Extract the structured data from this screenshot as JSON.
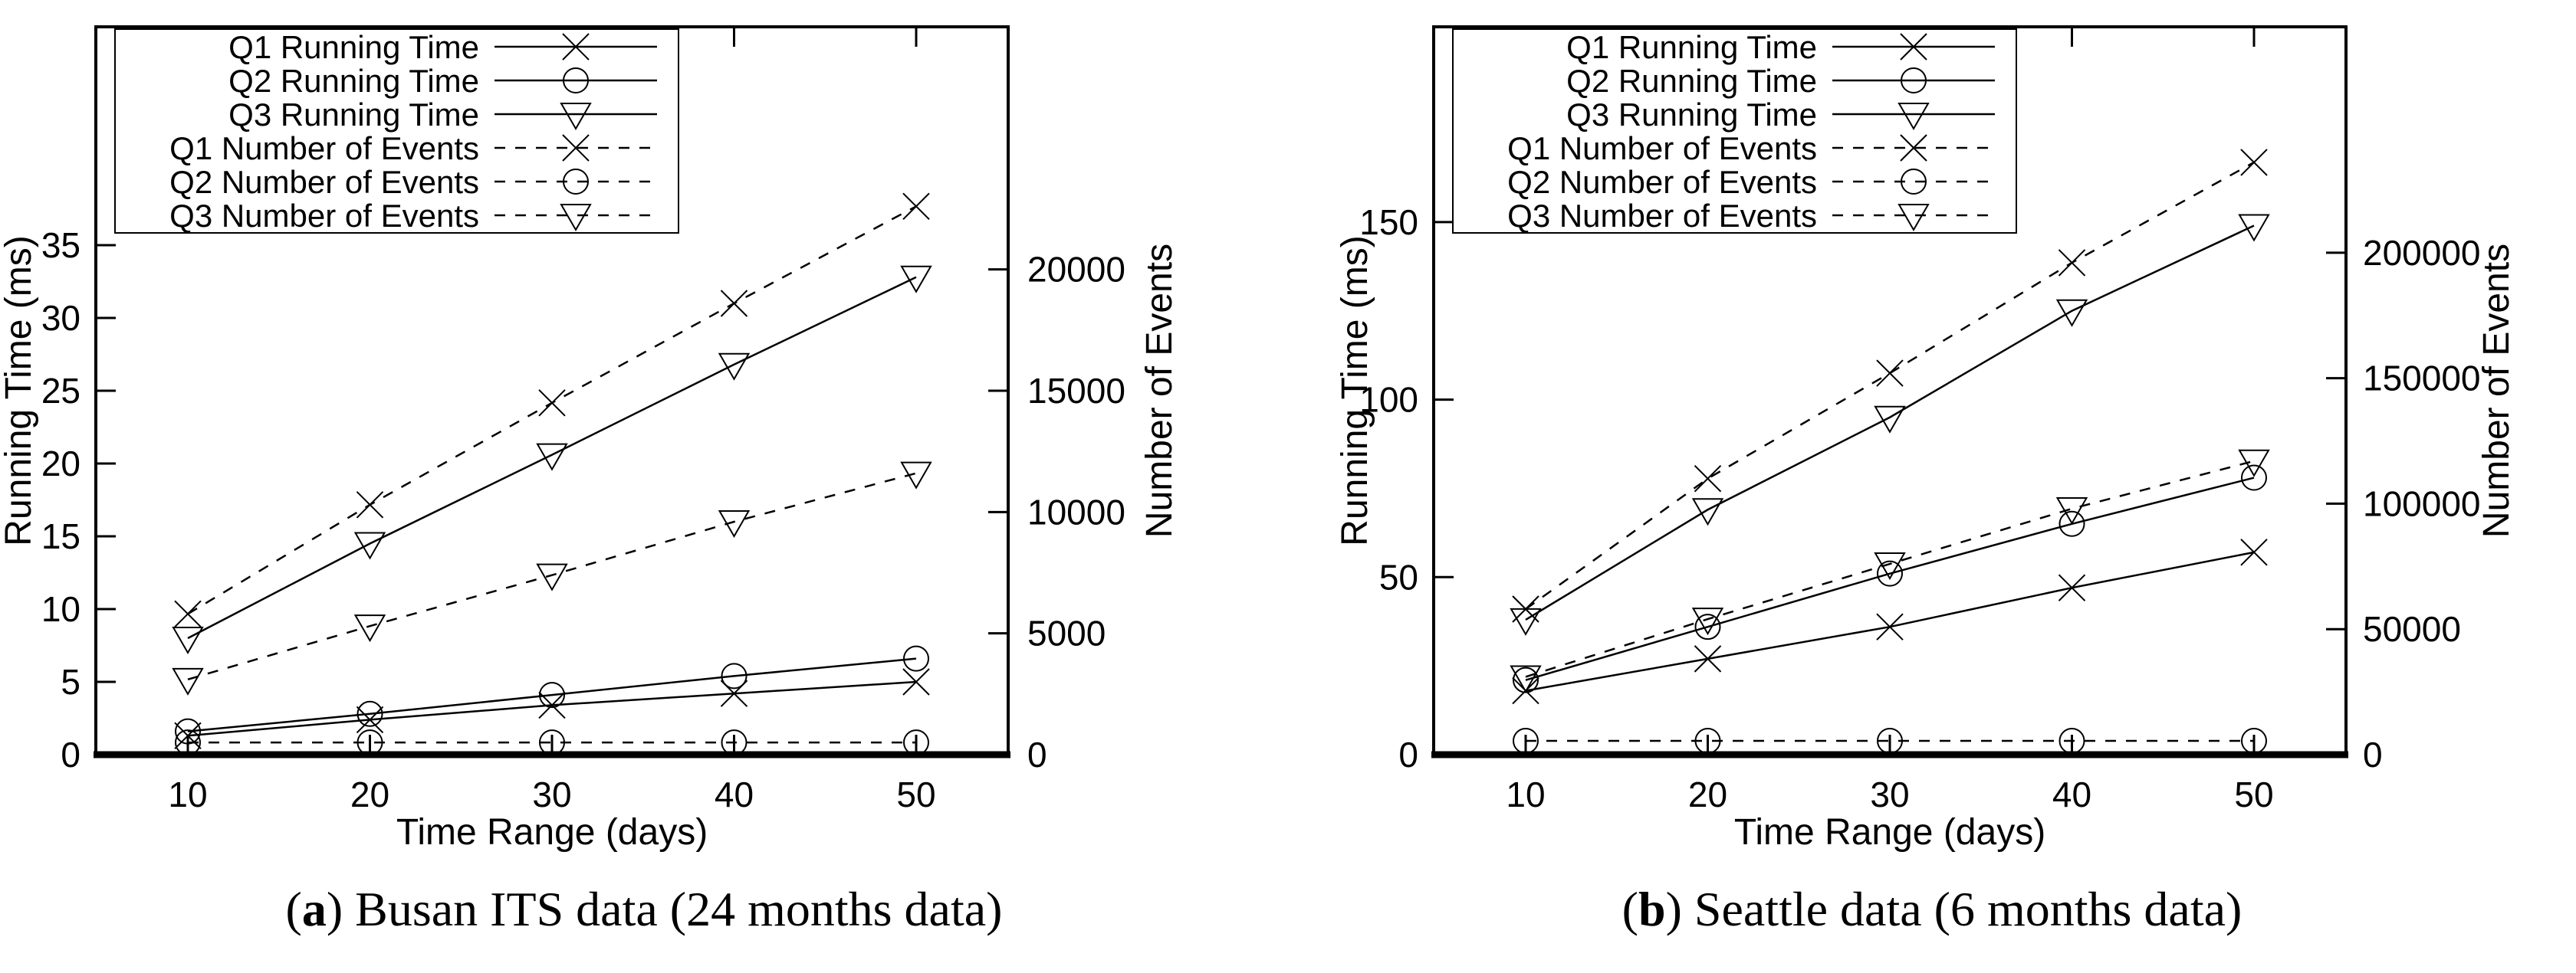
{
  "figure": {
    "background": "#ffffff",
    "ink_color": "#000000"
  },
  "chart_data": [
    {
      "id": "a",
      "type": "line",
      "caption": {
        "open": "(",
        "letter": "a",
        "close": ")",
        "text": " Busan ITS data (24 months data)"
      },
      "xlabel": "Time Range (days)",
      "ylabel_left": "Running Time (ms)",
      "ylabel_right": "Number of Events",
      "legend_position": "top-left",
      "grid": false,
      "x": [
        10,
        20,
        30,
        40,
        50
      ],
      "x_ticks": [
        10,
        20,
        30,
        40,
        50
      ],
      "y1_ticks": [
        0,
        5,
        10,
        15,
        20,
        25,
        30,
        35
      ],
      "y1_range": [
        0,
        50
      ],
      "y2_ticks": [
        0,
        5000,
        10000,
        15000,
        20000
      ],
      "y2_range": [
        0,
        30000
      ],
      "series": [
        {
          "name": "Q1 Running Time",
          "axis": "y1",
          "marker": "cross",
          "line": "solid",
          "values": [
            1.3,
            2.4,
            3.4,
            4.2,
            5.0
          ]
        },
        {
          "name": "Q2 Running Time",
          "axis": "y1",
          "marker": "circle",
          "line": "solid",
          "values": [
            1.6,
            2.8,
            4.1,
            5.4,
            6.6
          ]
        },
        {
          "name": "Q3 Running Time",
          "axis": "y1",
          "marker": "triangle-down",
          "line": "solid",
          "values": [
            8.0,
            14.5,
            20.6,
            26.8,
            32.8
          ]
        },
        {
          "name": "Q1 Number of Events",
          "axis": "y2",
          "marker": "cross",
          "line": "dashed",
          "values": [
            5800,
            10300,
            14500,
            18600,
            22600
          ]
        },
        {
          "name": "Q2 Number of Events",
          "axis": "y2",
          "marker": "circle",
          "line": "dashed",
          "values": [
            500,
            500,
            500,
            500,
            500
          ]
        },
        {
          "name": "Q3 Number of Events",
          "axis": "y2",
          "marker": "triangle-down",
          "line": "dashed",
          "values": [
            3100,
            5300,
            7400,
            9600,
            11600
          ]
        }
      ]
    },
    {
      "id": "b",
      "type": "line",
      "caption": {
        "open": "(",
        "letter": "b",
        "close": ")",
        "text": " Seattle data (6 months data)"
      },
      "xlabel": "Time Range (days)",
      "ylabel_left": "Running Time (ms)",
      "ylabel_right": "Number of Events",
      "legend_position": "top-left",
      "grid": false,
      "x": [
        10,
        20,
        30,
        40,
        50
      ],
      "x_ticks": [
        10,
        20,
        30,
        40,
        50
      ],
      "y1_ticks": [
        0,
        50,
        100,
        150
      ],
      "y1_range": [
        0,
        205
      ],
      "y2_ticks": [
        0,
        50000,
        100000,
        150000,
        200000
      ],
      "y2_range": [
        0,
        290000
      ],
      "series": [
        {
          "name": "Q1 Running Time",
          "axis": "y1",
          "marker": "cross",
          "line": "solid",
          "values": [
            18,
            27,
            36,
            47,
            57
          ]
        },
        {
          "name": "Q2 Running Time",
          "axis": "y1",
          "marker": "circle",
          "line": "solid",
          "values": [
            21,
            36,
            51,
            65,
            78
          ]
        },
        {
          "name": "Q3 Running Time",
          "axis": "y1",
          "marker": "triangle-down",
          "line": "solid",
          "values": [
            38,
            69,
            95,
            125,
            149
          ]
        },
        {
          "name": "Q1 Number of Events",
          "axis": "y2",
          "marker": "cross",
          "line": "dashed",
          "values": [
            58000,
            110000,
            152000,
            196000,
            236000
          ]
        },
        {
          "name": "Q2 Number of Events",
          "axis": "y2",
          "marker": "circle",
          "line": "dashed",
          "values": [
            5500,
            5500,
            5500,
            5500,
            5500
          ]
        },
        {
          "name": "Q3 Number of Events",
          "axis": "y2",
          "marker": "triangle-down",
          "line": "dashed",
          "values": [
            31000,
            54000,
            76000,
            98000,
            117000
          ]
        }
      ]
    }
  ]
}
